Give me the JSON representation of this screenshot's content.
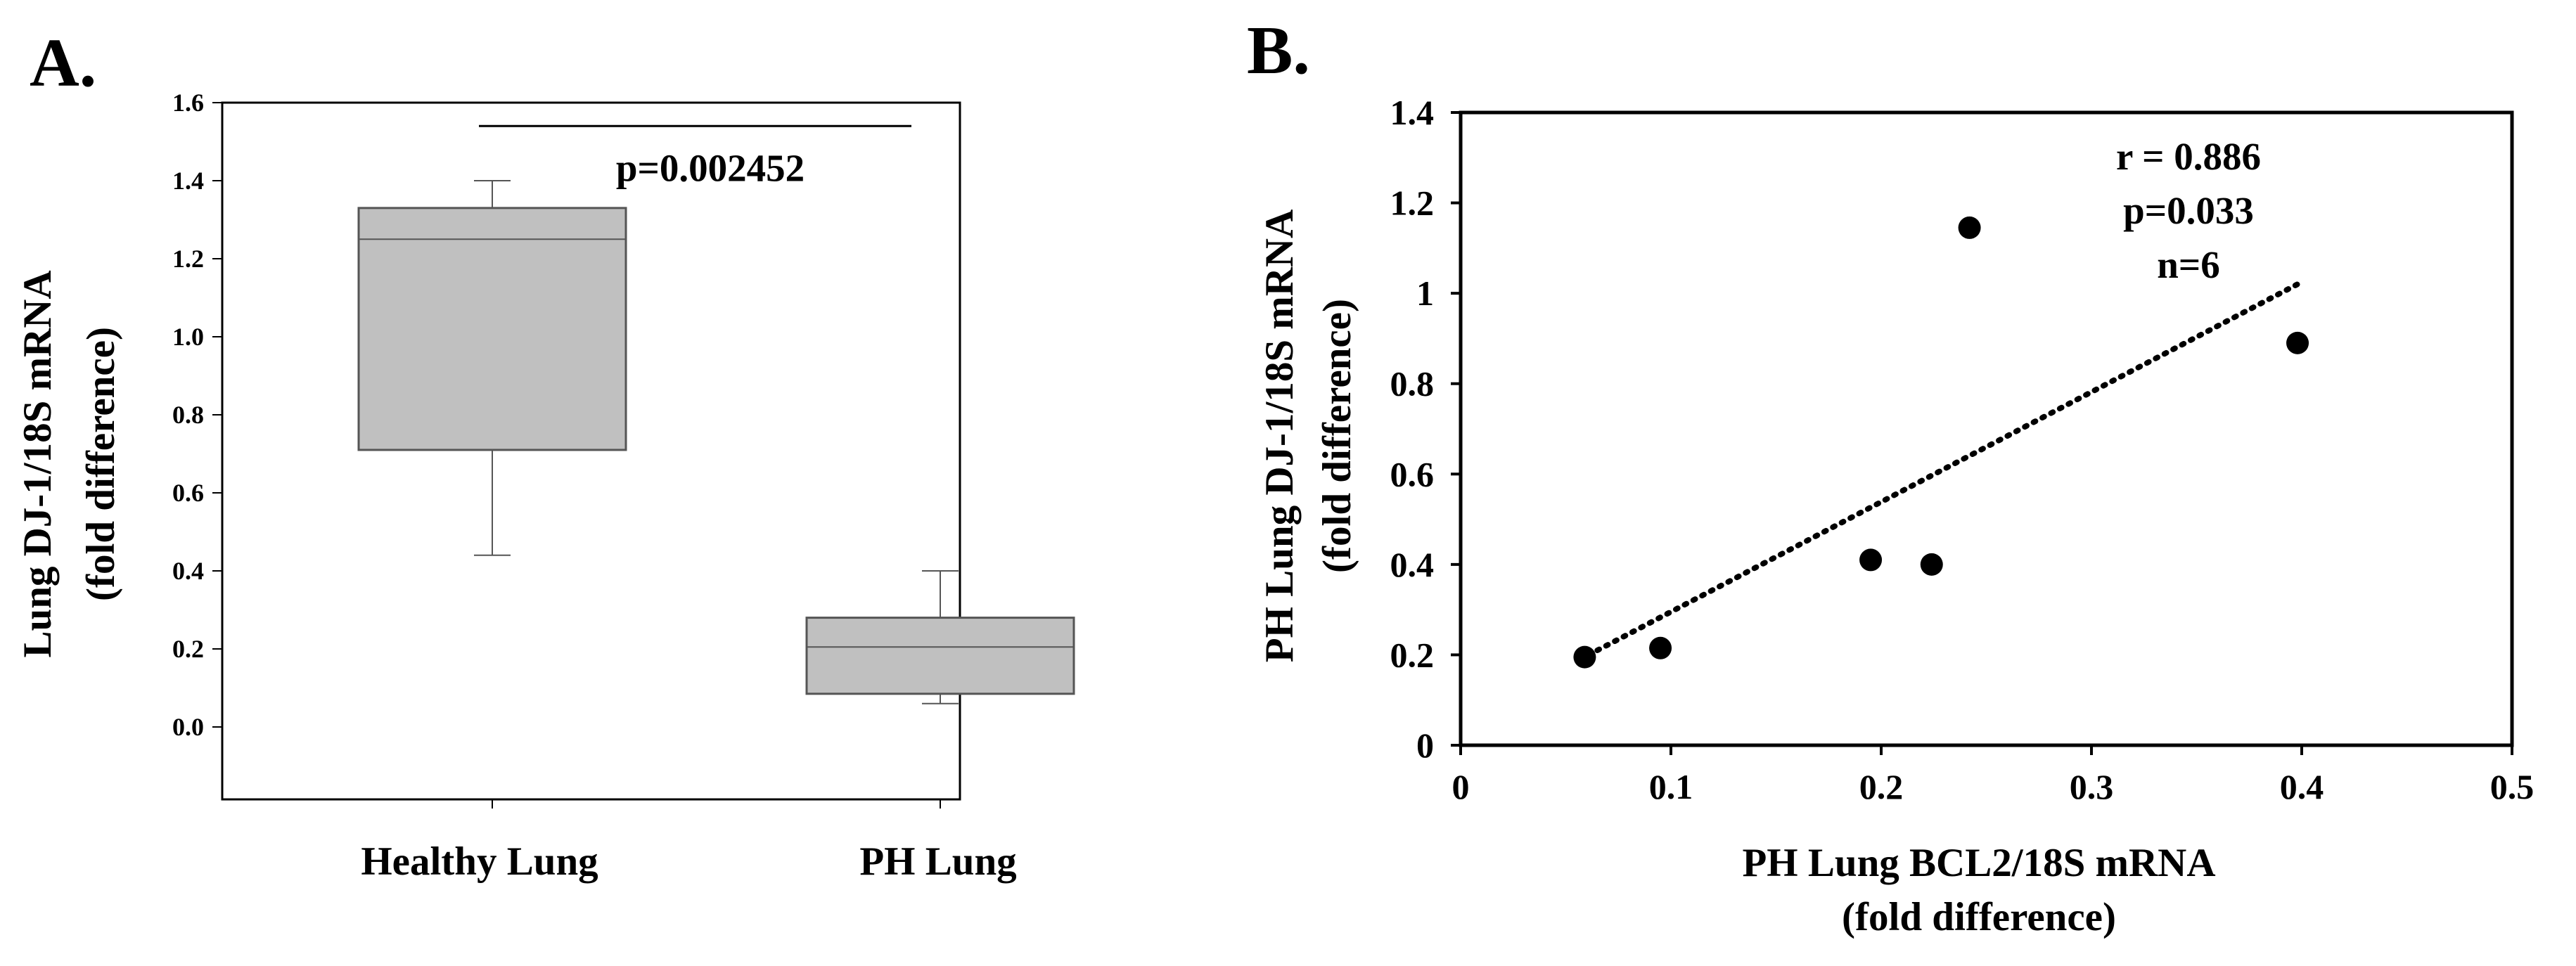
{
  "chart_data": [
    {
      "type": "box",
      "panel_label": "A.",
      "ylabel_line1": "Lung DJ-1/18S mRNA",
      "ylabel_line2": "(fold difference)",
      "xlabel": "",
      "ylim": [
        -0.2,
        1.6
      ],
      "yticks": [
        0.0,
        0.2,
        0.4,
        0.6,
        0.8,
        1.0,
        1.2,
        1.4,
        1.6
      ],
      "ytick_labels": [
        "0.0",
        "0.2",
        "0.4",
        "0.6",
        "0.8",
        "1.0",
        "1.2",
        "1.4",
        "1.6"
      ],
      "categories": [
        "Healthy Lung",
        "PH Lung"
      ],
      "boxes": [
        {
          "name": "Healthy Lung",
          "min": 0.44,
          "q1": 0.71,
          "median": 1.25,
          "q3": 1.33,
          "max": 1.4
        },
        {
          "name": "PH Lung",
          "min": 0.06,
          "q1": 0.085,
          "median": 0.205,
          "q3": 0.28,
          "max": 0.4
        }
      ],
      "annotation": "p=0.002452",
      "significance_bar_y": 1.54,
      "colors": {
        "box_fill": "#c0c0c0",
        "line": "#555555",
        "frame": "#000000"
      }
    },
    {
      "type": "scatter",
      "panel_label": "B.",
      "ylabel_line1": "PH Lung DJ-1/18S mRNA",
      "ylabel_line2": "(fold difference)",
      "xlabel_line1": "PH Lung BCL2/18S mRNA",
      "xlabel_line2": "(fold difference)",
      "xlim": [
        0,
        0.5
      ],
      "ylim": [
        0,
        1.4
      ],
      "xticks": [
        0,
        0.1,
        0.2,
        0.3,
        0.4,
        0.5
      ],
      "xtick_labels": [
        "0",
        "0.1",
        "0.2",
        "0.3",
        "0.4",
        "0.5"
      ],
      "yticks": [
        0,
        0.2,
        0.4,
        0.6,
        0.8,
        1.0,
        1.2,
        1.4
      ],
      "ytick_labels": [
        "0",
        "0.2",
        "0.4",
        "0.6",
        "0.8",
        "1",
        "1.2",
        "1.4"
      ],
      "points": [
        {
          "x": 0.059,
          "y": 0.195
        },
        {
          "x": 0.095,
          "y": 0.215
        },
        {
          "x": 0.195,
          "y": 0.41
        },
        {
          "x": 0.224,
          "y": 0.4
        },
        {
          "x": 0.242,
          "y": 1.145
        },
        {
          "x": 0.398,
          "y": 0.89
        }
      ],
      "trendline": {
        "x1": 0.065,
        "y1": 0.21,
        "x2": 0.398,
        "y2": 1.02,
        "style": "dotted"
      },
      "annotations": [
        "r = 0.886",
        "p=0.033",
        "n=6"
      ],
      "colors": {
        "point": "#000000",
        "trend": "#000000",
        "frame": "#000000"
      }
    }
  ]
}
